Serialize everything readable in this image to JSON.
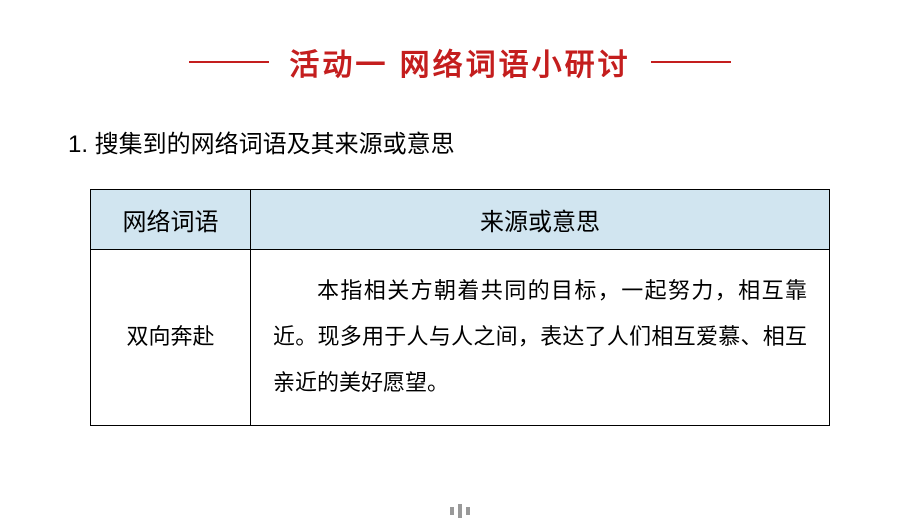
{
  "title": {
    "text": "活动一  网络词语小研讨",
    "color": "#c41e1e",
    "line_color": "#c41e1e",
    "fontsize": 30
  },
  "subtitle": {
    "text": "1.  搜集到的网络词语及其来源或意思",
    "fontsize": 24,
    "color": "#000000"
  },
  "table": {
    "header_bg": "#d1e5f0",
    "border_color": "#000000",
    "columns": [
      {
        "label": "网络词语",
        "width": 160
      },
      {
        "label": "来源或意思"
      }
    ],
    "rows": [
      {
        "term": "双向奔赴",
        "meaning": "本指相关方朝着共同的目标，一起努力，相互靠近。现多用于人与人之间，表达了人们相互爱慕、相互亲近的美好愿望。"
      }
    ],
    "body_fontsize": 22,
    "body_line_height": 2.1
  },
  "background_color": "#ffffff"
}
